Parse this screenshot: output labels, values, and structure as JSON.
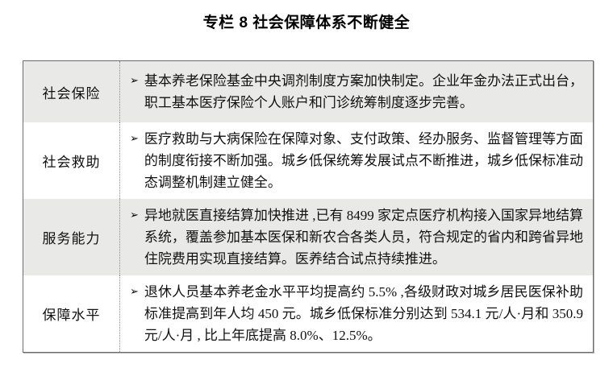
{
  "title": "专栏 8  社会保障体系不断健全",
  "table": {
    "bullet": "➢",
    "rows": [
      {
        "label": "社会保险",
        "content": "基本养老保险基金中央调剂制度方案加快制定。企业年金办法正式出台，职工基本医疗保险个人账户和门诊统筹制度逐步完善。",
        "shaded": true
      },
      {
        "label": "社会救助",
        "content": "医疗救助与大病保险在保障对象、支付政策、经办服务、监督管理等方面的制度衔接不断加强。城乡低保统筹发展试点不断推进，城乡低保标准动态调整机制建立健全。",
        "shaded": false
      },
      {
        "label": "服务能力",
        "content": "异地就医直接结算加快推进 ,已有 8499 家定点医疗机构接入国家异地结算系统，覆盖参加基本医保和新农合各类人员，符合规定的省内和跨省异地住院费用实现直接结算。医养结合试点持续推进。",
        "shaded": true
      },
      {
        "label": "保障水平",
        "content": "退休人员基本养老金水平平均提高约 5.5% ,各级财政对城乡居民医保补助标准提高到年人均 450 元。城乡低保标准分别达到 534.1 元/人·月和 350.9 元/人·月 , 比上年底提高 8.0%、12.5%。",
        "shaded": false
      }
    ]
  },
  "colors": {
    "row_shade": "#e9e9e7",
    "table_border": "#6b6b6b",
    "column_divider": "#8a8a8a",
    "text": "#111111",
    "background": "#ffffff"
  }
}
